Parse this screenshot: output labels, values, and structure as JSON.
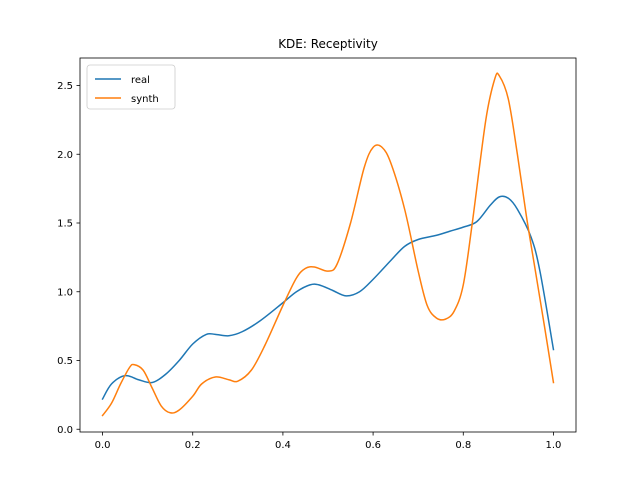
{
  "chart_data": {
    "type": "line",
    "title": "KDE: Receptivity",
    "xlabel": "",
    "ylabel": "",
    "xlim": [
      -0.05,
      1.05
    ],
    "ylim": [
      -0.02,
      2.7
    ],
    "xticks": [
      0.0,
      0.2,
      0.4,
      0.6,
      0.8,
      1.0
    ],
    "xtick_labels": [
      "0.0",
      "0.2",
      "0.4",
      "0.6",
      "0.8",
      "1.0"
    ],
    "yticks": [
      0.0,
      0.5,
      1.0,
      1.5,
      2.0,
      2.5
    ],
    "ytick_labels": [
      "0.0",
      "0.5",
      "1.0",
      "1.5",
      "2.0",
      "2.5"
    ],
    "grid": false,
    "legend_position": "top-left",
    "series": [
      {
        "name": "real",
        "color": "#1f77b4",
        "points": [
          [
            0.0,
            0.22
          ],
          [
            0.02,
            0.33
          ],
          [
            0.05,
            0.39
          ],
          [
            0.08,
            0.36
          ],
          [
            0.11,
            0.34
          ],
          [
            0.14,
            0.4
          ],
          [
            0.17,
            0.5
          ],
          [
            0.2,
            0.62
          ],
          [
            0.23,
            0.69
          ],
          [
            0.25,
            0.69
          ],
          [
            0.28,
            0.68
          ],
          [
            0.31,
            0.71
          ],
          [
            0.35,
            0.79
          ],
          [
            0.4,
            0.92
          ],
          [
            0.43,
            1.0
          ],
          [
            0.46,
            1.05
          ],
          [
            0.48,
            1.05
          ],
          [
            0.51,
            1.01
          ],
          [
            0.54,
            0.97
          ],
          [
            0.57,
            1.0
          ],
          [
            0.6,
            1.09
          ],
          [
            0.64,
            1.23
          ],
          [
            0.67,
            1.33
          ],
          [
            0.7,
            1.38
          ],
          [
            0.74,
            1.41
          ],
          [
            0.77,
            1.44
          ],
          [
            0.8,
            1.47
          ],
          [
            0.83,
            1.51
          ],
          [
            0.86,
            1.63
          ],
          [
            0.88,
            1.69
          ],
          [
            0.9,
            1.68
          ],
          [
            0.92,
            1.6
          ],
          [
            0.95,
            1.4
          ],
          [
            0.97,
            1.15
          ],
          [
            1.0,
            0.58
          ]
        ]
      },
      {
        "name": "synth",
        "color": "#ff7f0e",
        "points": [
          [
            0.0,
            0.1
          ],
          [
            0.02,
            0.19
          ],
          [
            0.04,
            0.33
          ],
          [
            0.06,
            0.45
          ],
          [
            0.07,
            0.47
          ],
          [
            0.09,
            0.43
          ],
          [
            0.11,
            0.3
          ],
          [
            0.13,
            0.17
          ],
          [
            0.15,
            0.12
          ],
          [
            0.17,
            0.14
          ],
          [
            0.2,
            0.24
          ],
          [
            0.22,
            0.33
          ],
          [
            0.25,
            0.38
          ],
          [
            0.28,
            0.36
          ],
          [
            0.3,
            0.35
          ],
          [
            0.33,
            0.43
          ],
          [
            0.36,
            0.61
          ],
          [
            0.4,
            0.9
          ],
          [
            0.43,
            1.1
          ],
          [
            0.45,
            1.17
          ],
          [
            0.47,
            1.18
          ],
          [
            0.5,
            1.15
          ],
          [
            0.52,
            1.2
          ],
          [
            0.55,
            1.5
          ],
          [
            0.58,
            1.9
          ],
          [
            0.6,
            2.05
          ],
          [
            0.62,
            2.05
          ],
          [
            0.64,
            1.93
          ],
          [
            0.67,
            1.6
          ],
          [
            0.7,
            1.15
          ],
          [
            0.72,
            0.9
          ],
          [
            0.74,
            0.81
          ],
          [
            0.76,
            0.8
          ],
          [
            0.78,
            0.86
          ],
          [
            0.8,
            1.05
          ],
          [
            0.82,
            1.5
          ],
          [
            0.85,
            2.25
          ],
          [
            0.87,
            2.55
          ],
          [
            0.88,
            2.57
          ],
          [
            0.9,
            2.4
          ],
          [
            0.92,
            2.0
          ],
          [
            0.94,
            1.55
          ],
          [
            0.96,
            1.15
          ],
          [
            0.98,
            0.75
          ],
          [
            1.0,
            0.34
          ]
        ]
      }
    ]
  }
}
